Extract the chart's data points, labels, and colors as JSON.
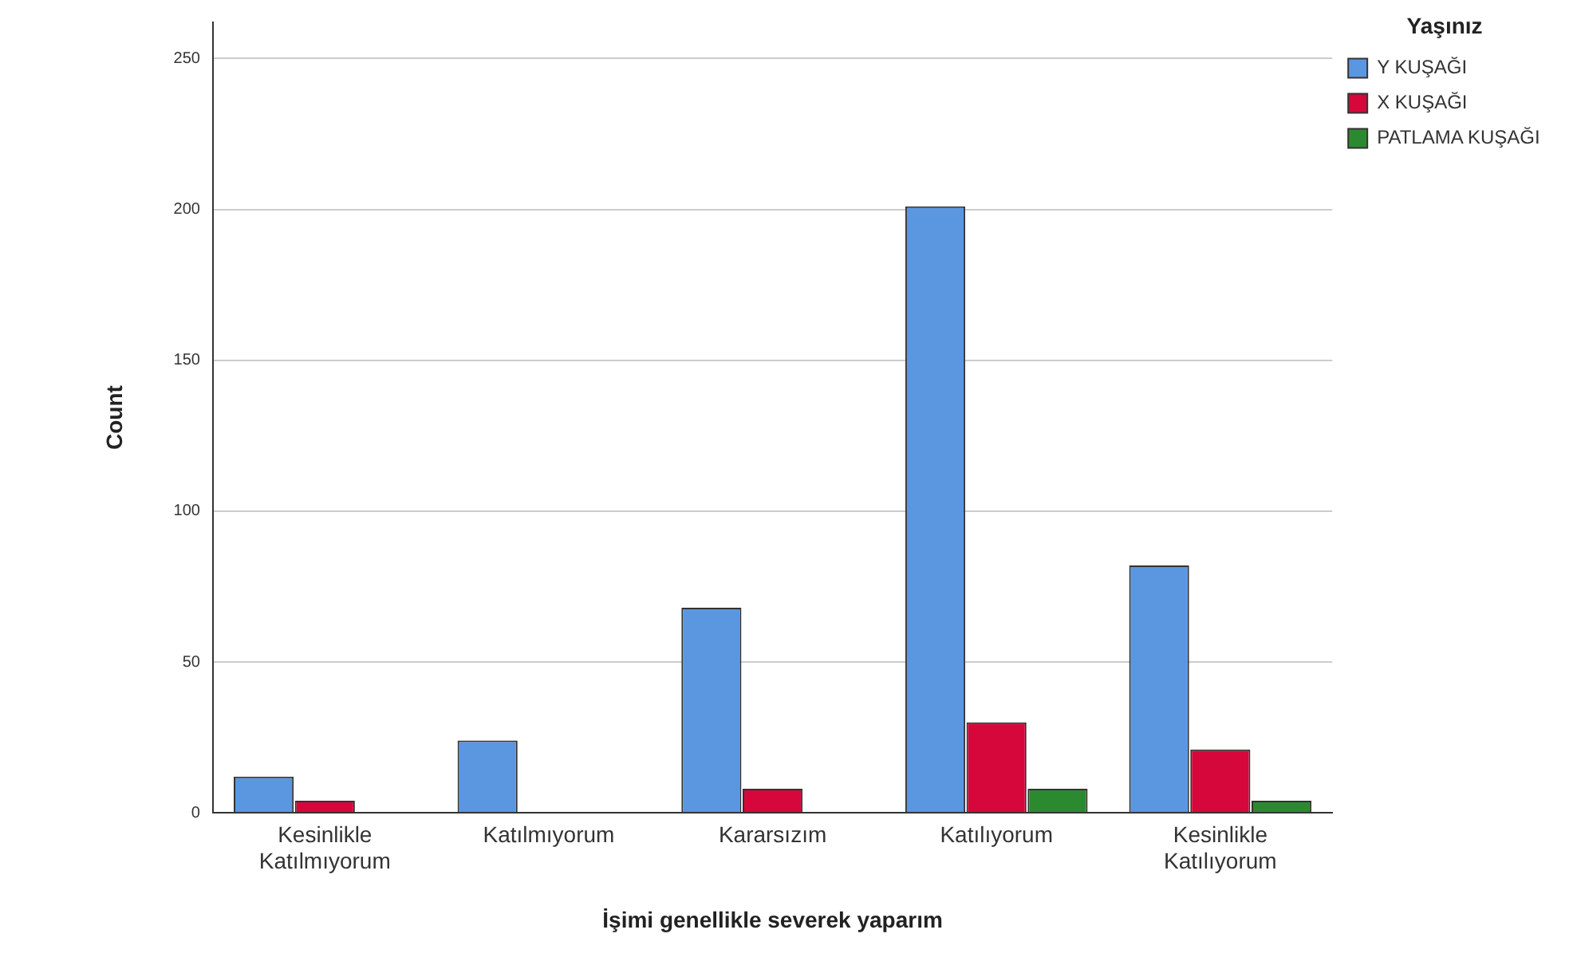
{
  "chart_data": {
    "type": "bar",
    "xlabel": "İşimi genellikle severek yaparım",
    "ylabel": "Count",
    "legend_title": "Yaşınız",
    "categories": [
      "Kesinlikle Katılmıyorum",
      "Katılmıyorum",
      "Kararsızım",
      "Katılıyorum",
      "Kesinlikle Katılıyorum"
    ],
    "series": [
      {
        "name": "Y KUŞAĞI",
        "color": "#5b96e0",
        "values": [
          12,
          24,
          68,
          201,
          82
        ]
      },
      {
        "name": "X KUŞAĞI",
        "color": "#d6083b",
        "values": [
          4,
          0,
          8,
          30,
          21
        ]
      },
      {
        "name": "PATLAMA KUŞAĞI",
        "color": "#2b8a30",
        "values": [
          0,
          0,
          0,
          8,
          4
        ]
      }
    ],
    "ylim": [
      0,
      262
    ],
    "yticks": [
      0,
      50,
      100,
      150,
      200,
      250
    ],
    "grid": "y",
    "legend": "top right"
  }
}
